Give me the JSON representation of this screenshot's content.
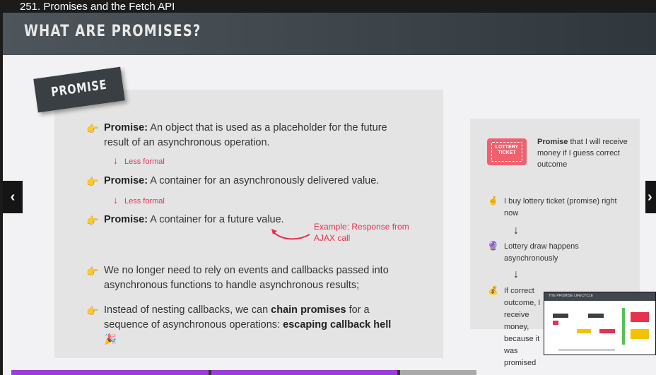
{
  "video": {
    "title": "251. Promises and the Fetch API"
  },
  "slide": {
    "heading": "WHAT ARE PROMISES?",
    "label": "PROMISE",
    "bullets": [
      {
        "strong": "Promise:",
        "text": " An object that is used as a placeholder for the future result of an asynchronous operation."
      },
      {
        "strong": "Promise:",
        "text": " A container for an asynchronously delivered value."
      },
      {
        "strong": "Promise:",
        "text": " A container for a future value."
      },
      {
        "text": "We no longer need to rely on events and callbacks passed into asynchronous functions to handle asynchronous results;"
      },
      {
        "pre": "Instead of nesting callbacks, we can ",
        "strong1": "chain promises",
        "mid": " for a sequence of asynchronous operations: ",
        "strong2": "escaping callback hell",
        "emoji": "🎉"
      }
    ],
    "notes": {
      "less_formal_1": "Less formal",
      "less_formal_2": "Less formal",
      "example": "Example: Response from AJAX call"
    },
    "side": {
      "ticket_text": "LOTTERY TICKET",
      "intro_strong": "Promise",
      "intro_rest": " that I will receive money if I guess correct outcome",
      "steps": [
        {
          "icon": "🤞",
          "text": "I buy lottery ticket (promise) right now"
        },
        {
          "icon": "🔮",
          "text": "Lottery draw happens asynchronously"
        },
        {
          "icon": "💰",
          "text": "If correct outcome, I receive money, because it was promised"
        }
      ]
    }
  },
  "pip": {
    "title": "THE PROMISE LIFECYCLE"
  },
  "progress": {
    "value": 0.83
  },
  "colors": {
    "accent_red": "#e8304f",
    "progress": "#9b3ddd",
    "hand": "#f2a01f"
  }
}
